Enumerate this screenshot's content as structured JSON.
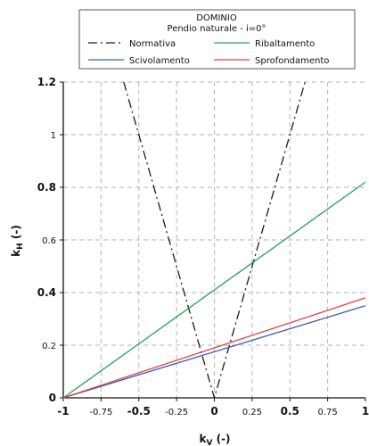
{
  "chart_data": {
    "type": "line",
    "legend": {
      "title_line1": "DOMINIO",
      "title_line2": "Pendio naturale - i=0°",
      "placement": "top"
    },
    "xlabel": "k",
    "xlabel_sub": "V",
    "xlabel_unit": " (-)",
    "ylabel": "k",
    "ylabel_sub": "H",
    "ylabel_unit": " (-)",
    "xlim": [
      -1,
      1
    ],
    "ylim": [
      0,
      1.2
    ],
    "grid": true,
    "x_ticks": [
      {
        "value": -1,
        "label": "-1",
        "bold": true
      },
      {
        "value": -0.75,
        "label": "-0.75",
        "bold": false
      },
      {
        "value": -0.5,
        "label": "-0.5",
        "bold": true
      },
      {
        "value": -0.25,
        "label": "-0.25",
        "bold": false
      },
      {
        "value": 0,
        "label": "0",
        "bold": true
      },
      {
        "value": 0.25,
        "label": "0.25",
        "bold": false
      },
      {
        "value": 0.5,
        "label": "0.5",
        "bold": true
      },
      {
        "value": 0.75,
        "label": "0.75",
        "bold": false
      },
      {
        "value": 1,
        "label": "1",
        "bold": true
      }
    ],
    "y_ticks": [
      {
        "value": 0,
        "label": "0",
        "bold": true
      },
      {
        "value": 0.2,
        "label": "0.2",
        "bold": false
      },
      {
        "value": 0.4,
        "label": "0.4",
        "bold": true
      },
      {
        "value": 0.6,
        "label": "0.6",
        "bold": false
      },
      {
        "value": 0.8,
        "label": "0.8",
        "bold": true
      },
      {
        "value": 1,
        "label": "1",
        "bold": false
      },
      {
        "value": 1.2,
        "label": "1.2",
        "bold": true
      }
    ],
    "series": [
      {
        "name": "Normativa",
        "color": "#1a1a1a",
        "dash": "dashdot",
        "x": [
          -0.6,
          0,
          0.6
        ],
        "y": [
          1.2,
          0,
          1.2
        ]
      },
      {
        "name": "Ribaltamento",
        "color": "#22a35a",
        "dash": "solid",
        "x": [
          -1,
          1
        ],
        "y": [
          0,
          0.82
        ]
      },
      {
        "name": "Scivolamento",
        "color": "#3a5db8",
        "dash": "solid",
        "x": [
          -1,
          1
        ],
        "y": [
          0,
          0.35
        ]
      },
      {
        "name": "Sprofondamento",
        "color": "#e0443a",
        "dash": "solid",
        "x": [
          -1,
          1
        ],
        "y": [
          0,
          0.38
        ]
      }
    ]
  }
}
